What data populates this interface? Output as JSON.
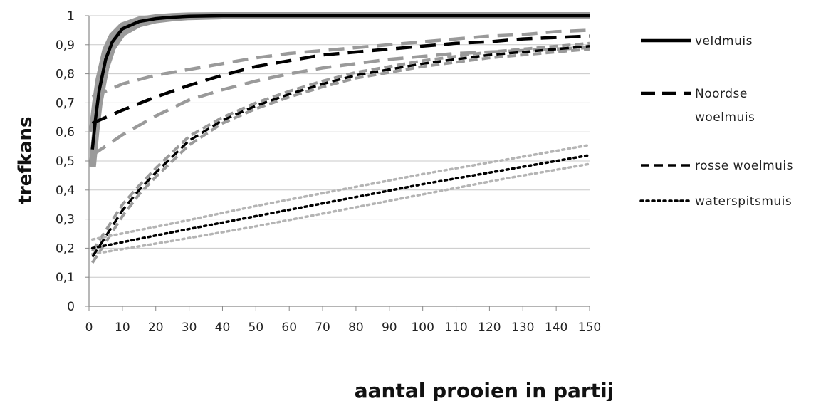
{
  "chart_data": {
    "type": "line",
    "title": "",
    "xlabel": "aantal prooien in partij",
    "ylabel": "trefkans",
    "xlim": [
      0,
      150
    ],
    "ylim": [
      0,
      1
    ],
    "x_ticks": [
      0,
      10,
      20,
      30,
      40,
      50,
      60,
      70,
      80,
      90,
      100,
      110,
      120,
      130,
      140,
      150
    ],
    "y_ticks": [
      0,
      0.1,
      0.2,
      0.3,
      0.4,
      0.5,
      0.6,
      0.7,
      0.8,
      0.9,
      1
    ],
    "x_tick_labels": [
      "0",
      "10",
      "20",
      "30",
      "40",
      "50",
      "60",
      "70",
      "80",
      "90",
      "100",
      "110",
      "120",
      "130",
      "140",
      "150"
    ],
    "y_tick_labels": [
      "0",
      "0,1",
      "0,2",
      "0,3",
      "0,4",
      "0,5",
      "0,6",
      "0,7",
      "0,8",
      "0,9",
      "1"
    ],
    "grid": "horizontal",
    "legend_position": "right",
    "colors": {
      "series": "#000000",
      "confidence_band": "#9a9a9a",
      "confidence_band_dotted": "#b4b4b4",
      "grid": "#c8c8c8",
      "axis": "#888888"
    },
    "series": [
      {
        "name": "veldmuis",
        "style": "solid",
        "x": [
          1,
          2,
          3,
          5,
          7,
          10,
          15,
          20,
          25,
          30,
          40,
          50,
          75,
          100,
          150
        ],
        "y": [
          0.54,
          0.65,
          0.74,
          0.85,
          0.91,
          0.955,
          0.98,
          0.99,
          0.995,
          0.998,
          1.0,
          1.0,
          1.0,
          1.0,
          1.0
        ],
        "band_lower": [
          0.48,
          0.6,
          0.7,
          0.82,
          0.89,
          0.94,
          0.972,
          0.986,
          0.993,
          0.997,
          1.0,
          1.0,
          1.0,
          1.0,
          1.0
        ],
        "band_upper": [
          0.6,
          0.7,
          0.78,
          0.88,
          0.93,
          0.965,
          0.985,
          0.993,
          0.997,
          0.999,
          1.0,
          1.0,
          1.0,
          1.0,
          1.0
        ]
      },
      {
        "name": "Noordse woelmuis",
        "style": "long-dash",
        "x": [
          1,
          10,
          20,
          30,
          40,
          50,
          60,
          70,
          80,
          90,
          100,
          110,
          120,
          130,
          140,
          150
        ],
        "y": [
          0.63,
          0.675,
          0.72,
          0.76,
          0.795,
          0.825,
          0.845,
          0.865,
          0.875,
          0.885,
          0.895,
          0.905,
          0.91,
          0.92,
          0.925,
          0.93
        ],
        "band_lower": [
          0.52,
          0.59,
          0.655,
          0.71,
          0.745,
          0.775,
          0.8,
          0.82,
          0.835,
          0.85,
          0.86,
          0.87,
          0.875,
          0.88,
          0.885,
          0.89
        ],
        "band_upper": [
          0.72,
          0.765,
          0.795,
          0.815,
          0.835,
          0.855,
          0.87,
          0.88,
          0.89,
          0.9,
          0.91,
          0.92,
          0.93,
          0.935,
          0.945,
          0.95
        ]
      },
      {
        "name": "rosse woelmuis",
        "style": "short-dash",
        "x": [
          1,
          5,
          10,
          15,
          20,
          30,
          40,
          50,
          60,
          70,
          80,
          90,
          100,
          110,
          120,
          130,
          140,
          150
        ],
        "y": [
          0.17,
          0.24,
          0.33,
          0.4,
          0.46,
          0.57,
          0.64,
          0.69,
          0.73,
          0.765,
          0.795,
          0.815,
          0.835,
          0.85,
          0.865,
          0.875,
          0.885,
          0.895
        ],
        "band_lower": [
          0.15,
          0.22,
          0.31,
          0.385,
          0.445,
          0.555,
          0.63,
          0.68,
          0.72,
          0.755,
          0.785,
          0.805,
          0.825,
          0.84,
          0.855,
          0.865,
          0.875,
          0.885
        ],
        "band_upper": [
          0.19,
          0.26,
          0.35,
          0.415,
          0.475,
          0.585,
          0.65,
          0.7,
          0.74,
          0.775,
          0.805,
          0.825,
          0.845,
          0.86,
          0.875,
          0.885,
          0.895,
          0.905
        ]
      },
      {
        "name": "waterspitsmuis",
        "style": "dotted",
        "x": [
          1,
          25,
          50,
          75,
          100,
          125,
          150
        ],
        "y": [
          0.2,
          0.255,
          0.31,
          0.365,
          0.42,
          0.47,
          0.52
        ],
        "band_lower": [
          0.18,
          0.225,
          0.275,
          0.33,
          0.385,
          0.44,
          0.49
        ],
        "band_upper": [
          0.23,
          0.285,
          0.345,
          0.4,
          0.455,
          0.505,
          0.555
        ]
      }
    ]
  }
}
